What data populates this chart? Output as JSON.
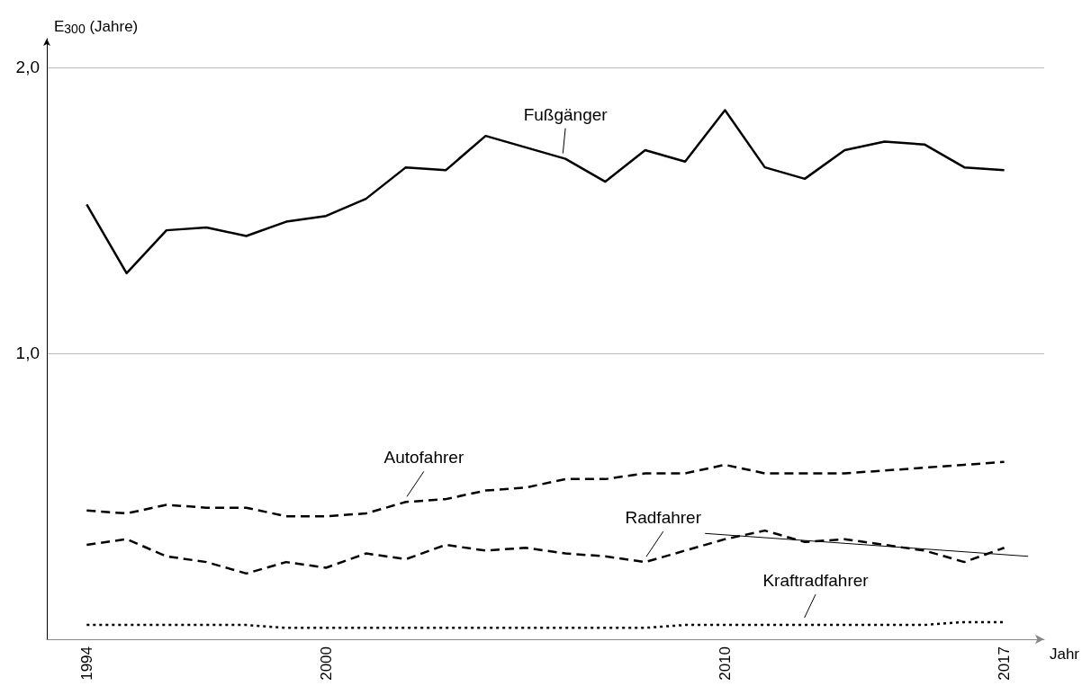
{
  "chart_data": {
    "type": "line",
    "xlabel": "Jahr",
    "ylabel": "E$_{300}$ (Jahre)",
    "x": [
      1994,
      1995,
      1996,
      1997,
      1998,
      1999,
      2000,
      2001,
      2002,
      2003,
      2004,
      2005,
      2006,
      2007,
      2008,
      2009,
      2010,
      2011,
      2012,
      2013,
      2014,
      2015,
      2016,
      2017
    ],
    "series": [
      {
        "name": "Fußgänger",
        "color": "#000000",
        "line_style": "solid",
        "values": [
          1.52,
          1.28,
          1.43,
          1.44,
          1.41,
          1.46,
          1.48,
          1.54,
          1.65,
          1.64,
          1.76,
          1.72,
          1.68,
          1.6,
          1.71,
          1.67,
          1.85,
          1.65,
          1.61,
          1.71,
          1.74,
          1.73,
          1.65,
          1.64
        ]
      },
      {
        "name": "Autofahrer",
        "color": "#000000",
        "line_style": "dashed",
        "values": [
          0.45,
          0.44,
          0.47,
          0.46,
          0.46,
          0.43,
          0.43,
          0.44,
          0.48,
          0.49,
          0.52,
          0.53,
          0.56,
          0.56,
          0.58,
          0.58,
          0.61,
          0.58,
          0.58,
          0.58,
          0.59,
          0.6,
          0.61,
          0.62
        ]
      },
      {
        "name": "Radfahrer",
        "color": "#000000",
        "line_style": "dashed",
        "values": [
          0.33,
          0.35,
          0.29,
          0.27,
          0.23,
          0.27,
          0.25,
          0.3,
          0.28,
          0.33,
          0.31,
          0.32,
          0.3,
          0.29,
          0.27,
          0.31,
          0.35,
          0.38,
          0.34,
          0.35,
          0.33,
          0.31,
          0.27,
          0.32
        ]
      },
      {
        "name": "Kraftradfahrer",
        "color": "#000000",
        "line_style": "dotted",
        "values": [
          0.05,
          0.05,
          0.05,
          0.05,
          0.05,
          0.04,
          0.04,
          0.04,
          0.04,
          0.04,
          0.04,
          0.04,
          0.04,
          0.04,
          0.04,
          0.05,
          0.05,
          0.05,
          0.05,
          0.05,
          0.05,
          0.05,
          0.06,
          0.06
        ]
      },
      {
        "type": "line",
        "color": "#000000",
        "line_style": "solid",
        "x": [
          2009.5,
          2017.6
        ],
        "values": [
          0.37,
          0.29
        ]
      }
    ],
    "xlim": [
      1993,
      2018
    ],
    "xticks": [
      1994,
      2000,
      2010,
      2017
    ],
    "ylim": [
      0,
      2.1
    ],
    "yticks": [
      {
        "value": 1,
        "label": "1,0"
      },
      {
        "value": 2,
        "label": "2,0"
      }
    ],
    "grid": "y",
    "marker": "none"
  }
}
